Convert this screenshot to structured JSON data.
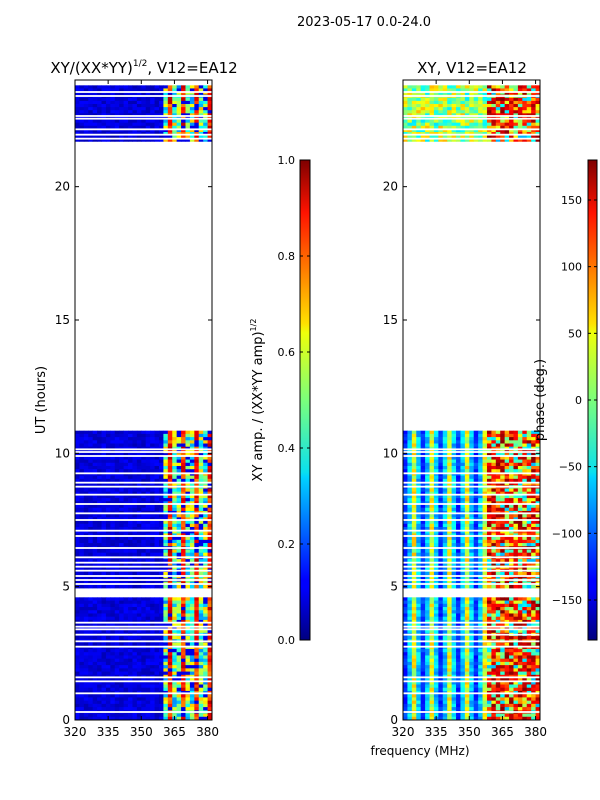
{
  "suptitle": "2023-05-17 0.0-24.0",
  "xlabel": "frequency (MHz)",
  "chart_data": [
    {
      "type": "heatmap",
      "title": "XY/(XX*YY)^{1/2}, V12=EA12",
      "title_main": "XY/(XX*YY)",
      "title_sup": "1/2",
      "title_tail": ", V12=EA12",
      "ylabel": "UT (hours)",
      "xlim": [
        320,
        382
      ],
      "ylim": [
        0,
        24
      ],
      "xticks": [
        320,
        335,
        350,
        365,
        380
      ],
      "yticks": [
        0,
        5,
        10,
        15,
        20
      ],
      "data_hours": [
        [
          0,
          4.6
        ],
        [
          4.95,
          10.85
        ],
        [
          21.7,
          23.8
        ]
      ],
      "colorbar": {
        "label_main": "XY amp. / (XX*YY amp)",
        "label_sup": "1/2",
        "range": [
          0.0,
          1.0
        ],
        "ticks": [
          "0.0",
          "0.2",
          "0.4",
          "0.6",
          "0.8",
          "1.0"
        ],
        "tick_values": [
          0.0,
          0.2,
          0.4,
          0.6,
          0.8,
          1.0
        ],
        "colormap": "jet"
      }
    },
    {
      "type": "heatmap",
      "title": "XY, V12=EA12",
      "ylabel": "",
      "xlim": [
        320,
        382
      ],
      "ylim": [
        0,
        24
      ],
      "xticks": [
        320,
        335,
        350,
        365,
        380
      ],
      "yticks": [
        0,
        5,
        10,
        15,
        20
      ],
      "data_hours": [
        [
          0,
          4.6
        ],
        [
          4.95,
          10.85
        ],
        [
          21.7,
          23.8
        ]
      ],
      "colorbar": {
        "label": "phase (deg.)",
        "range": [
          -180,
          180
        ],
        "ticks": [
          "−150",
          "−100",
          "−50",
          "0",
          "50",
          "100",
          "150"
        ],
        "tick_values": [
          -150,
          -100,
          -50,
          0,
          50,
          100,
          150
        ],
        "colormap": "jet"
      }
    }
  ]
}
